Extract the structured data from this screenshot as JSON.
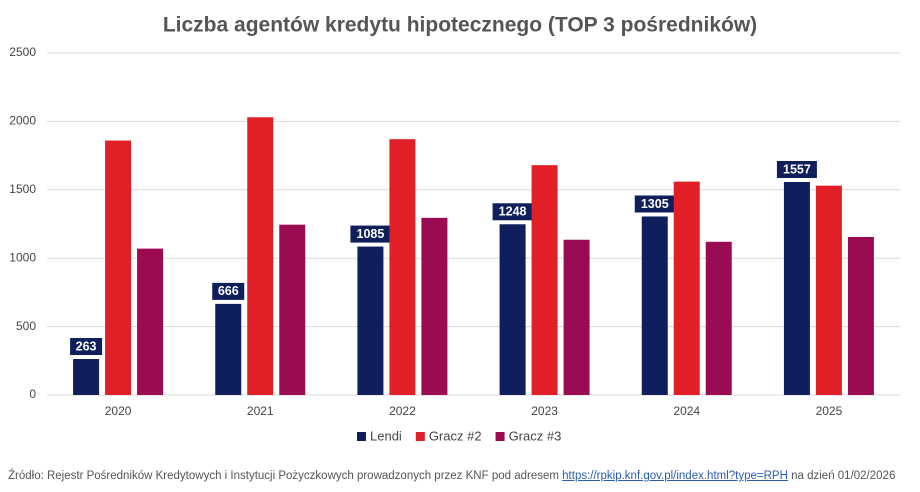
{
  "chart_data": {
    "type": "bar",
    "title": "Liczba agentów kredytu hipotecznego (TOP 3 pośredników)",
    "categories": [
      "2020",
      "2021",
      "2022",
      "2023",
      "2024",
      "2025"
    ],
    "series": [
      {
        "name": "Lendi",
        "color": "#0e1f5b",
        "values": [
          263,
          666,
          1085,
          1248,
          1305,
          1557
        ],
        "data_labels": true
      },
      {
        "name": "Gracz #2",
        "color": "#e01f26",
        "values": [
          1860,
          2030,
          1870,
          1680,
          1560,
          1530
        ],
        "data_labels": false
      },
      {
        "name": "Gracz #3",
        "color": "#9a0b52",
        "values": [
          1070,
          1245,
          1295,
          1135,
          1120,
          1155
        ],
        "data_labels": false
      }
    ],
    "ylim": [
      0,
      2500
    ],
    "yticks": [
      0,
      500,
      1000,
      1500,
      2000,
      2500
    ],
    "grid": true,
    "legend": "bottom"
  },
  "footer": {
    "text": "Źródło: Rejestr Pośredników Kredytowych i Instytucji Pożyczkowych prowadzonych przez KNF pod adresem",
    "link": "https://rpkip.knf.gov.pl/index.html?type=RPH",
    "suffix": "na dzień 01/02/2026"
  }
}
